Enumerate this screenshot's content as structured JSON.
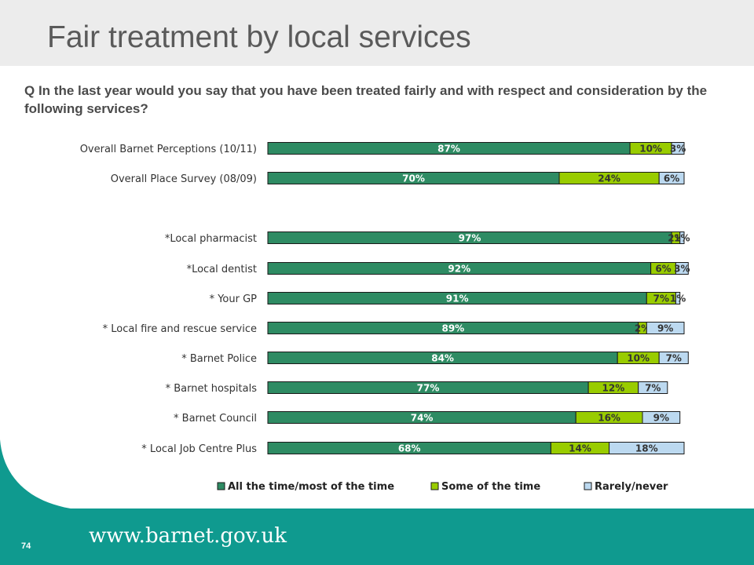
{
  "title": "Fair treatment by local services",
  "question": "Q In the last year would you say that you have been treated fairly and with respect and consideration by the following services?",
  "page_number": "74",
  "footer_url": "www.barnet.gov.uk",
  "colors": {
    "title_band": "#ececec",
    "footer_band": "#0f9a8f",
    "all_the_time": "#2e8b63",
    "some_of_the_time": "#99cc00",
    "rarely_never": "#bcd9f0"
  },
  "chart_data": {
    "type": "bar",
    "orientation": "horizontal",
    "stacked": true,
    "percent_stacked": true,
    "categories": [
      "Overall Barnet Perceptions (10/11)",
      "Overall Place Survey (08/09)",
      "*Local pharmacist",
      "*Local dentist",
      "* Your GP",
      "* Local fire and rescue service",
      "* Barnet Police",
      "* Barnet hospitals",
      "* Barnet Council",
      "* Local Job Centre Plus"
    ],
    "series": [
      {
        "name": "All the time/most of the time",
        "color": "#2e8b63",
        "values": [
          87,
          70,
          97,
          92,
          91,
          89,
          84,
          77,
          74,
          68
        ],
        "labels": [
          "87%",
          "70%",
          "97%",
          "92%",
          "91%",
          "89%",
          "84%",
          "77%",
          "74%",
          "68%"
        ]
      },
      {
        "name": "Some of the time",
        "color": "#99cc00",
        "values": [
          10,
          24,
          2,
          6,
          7,
          2,
          10,
          12,
          16,
          14
        ],
        "labels": [
          "10%",
          "24%",
          "2%",
          "6%",
          "7%",
          "2%",
          "10%",
          "12%",
          "16%",
          "14%"
        ]
      },
      {
        "name": "Rarely/never",
        "color": "#bcd9f0",
        "values": [
          3,
          6,
          1,
          3,
          1,
          9,
          7,
          7,
          9,
          18
        ],
        "labels": [
          "3%",
          "6%",
          "1%",
          "3%",
          "1%",
          "9%",
          "7%",
          "7%",
          "9%",
          "18%"
        ]
      }
    ],
    "xlim": [
      0,
      100
    ],
    "legend": {
      "position": "bottom"
    },
    "grid": false
  }
}
